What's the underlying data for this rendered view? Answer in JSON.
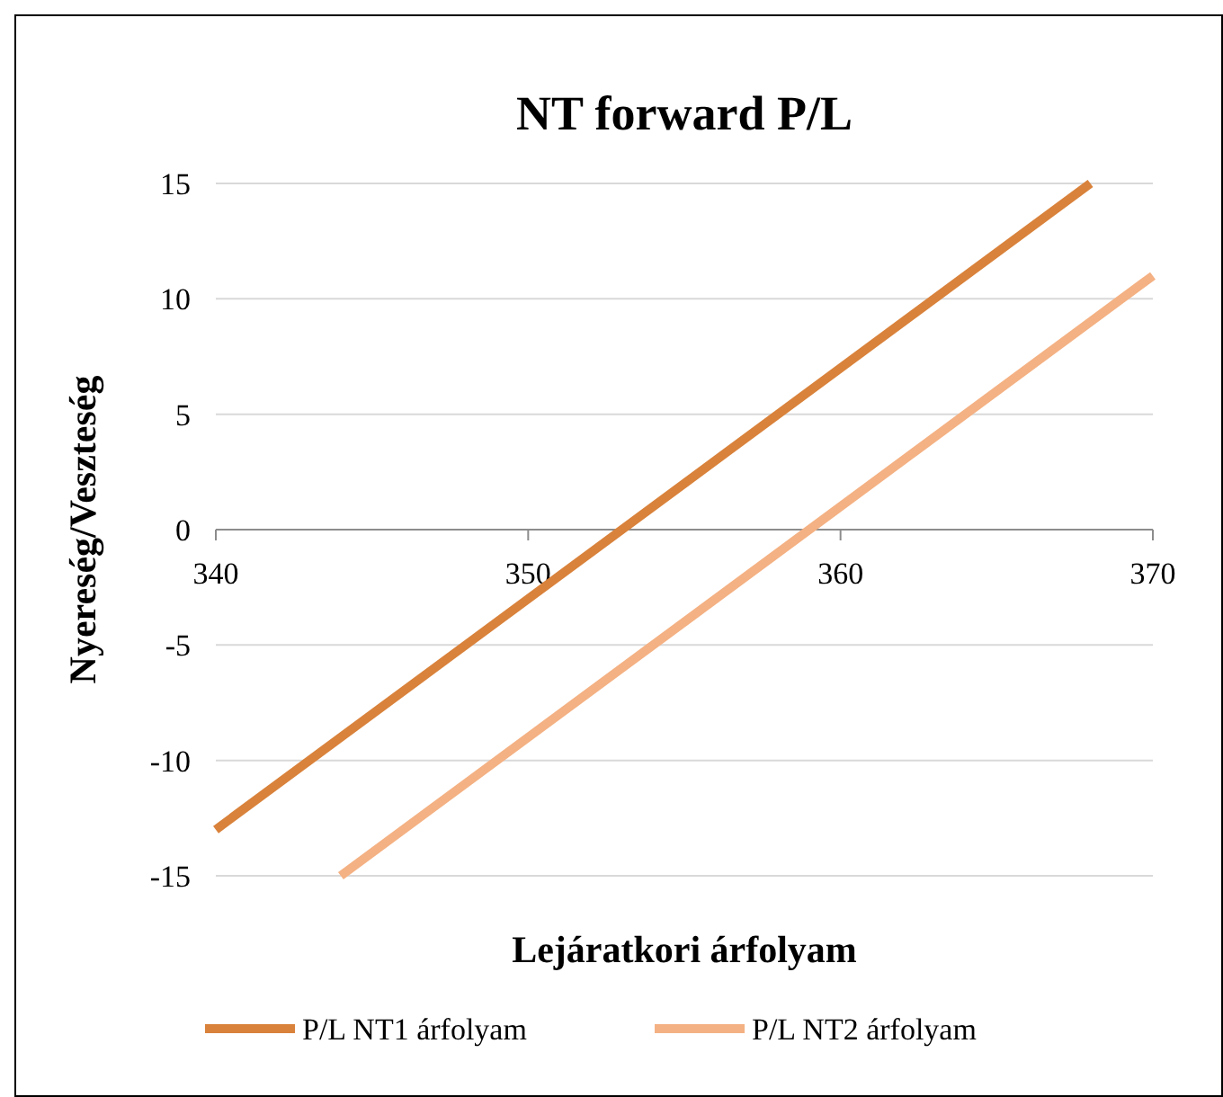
{
  "chart_data": {
    "type": "line",
    "title": "NT forward P/L",
    "xlabel": "Lejáratkori árfolyam",
    "ylabel": "Nyereség/Veszteség",
    "xlim": [
      340,
      370
    ],
    "xticks": [
      340,
      350,
      360,
      370
    ],
    "ylim": [
      -15,
      15
    ],
    "yticks": [
      -15,
      -10,
      -5,
      0,
      5,
      10,
      15
    ],
    "grid": "y",
    "legend": "bottom",
    "marker": "none",
    "line_style": "solid",
    "series": [
      {
        "name": "P/L NT1 árfolyam",
        "color": "#d9823b",
        "x": [
          340,
          368
        ],
        "values": [
          -13,
          15
        ]
      },
      {
        "name": "P/L NT2 árfolyam",
        "color": "#f4b183",
        "x": [
          344,
          370
        ],
        "values": [
          -15,
          11
        ]
      }
    ]
  }
}
